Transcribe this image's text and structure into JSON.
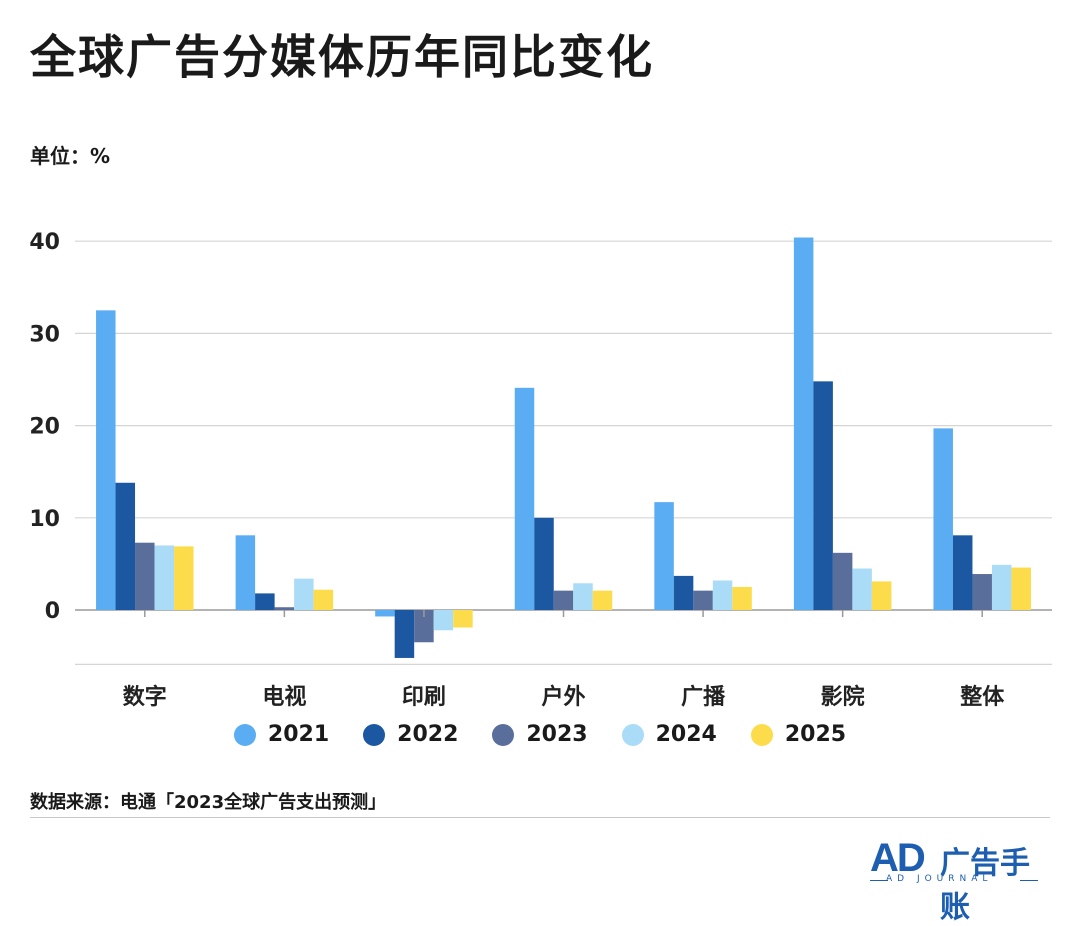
{
  "title": "全球广告分媒体历年同比变化",
  "unit_label": "单位：%",
  "source": "数据来源：电通「2023全球广告支出预测」",
  "logo": {
    "mark": "AD",
    "name": "广告手账",
    "sub": "AD JOURNAL"
  },
  "colors": {
    "2021": "#5aadf2",
    "2022": "#1c57a1",
    "2023": "#5a6e9b",
    "2024": "#abdcf7",
    "2025": "#fddc4c"
  },
  "chart_data": {
    "type": "bar",
    "categories": [
      "数字",
      "电视",
      "印刷",
      "户外",
      "广播",
      "影院",
      "整体"
    ],
    "series": [
      {
        "name": "2021",
        "values": [
          32.5,
          8.1,
          -0.7,
          24.1,
          11.7,
          40.4,
          19.7
        ]
      },
      {
        "name": "2022",
        "values": [
          13.8,
          1.8,
          -5.2,
          10.0,
          3.7,
          24.8,
          8.1
        ]
      },
      {
        "name": "2023",
        "values": [
          7.3,
          0.3,
          -3.5,
          2.1,
          2.1,
          6.2,
          3.9
        ]
      },
      {
        "name": "2024",
        "values": [
          7.0,
          3.4,
          -2.2,
          2.9,
          3.2,
          4.5,
          4.9
        ]
      },
      {
        "name": "2025",
        "values": [
          6.9,
          2.2,
          -1.9,
          2.1,
          2.5,
          3.1,
          4.6
        ]
      }
    ],
    "yticks": [
      0,
      10,
      20,
      30,
      40
    ],
    "ylim": [
      -5.9,
      40.5
    ],
    "grid": true,
    "legend_position": "bottom"
  }
}
